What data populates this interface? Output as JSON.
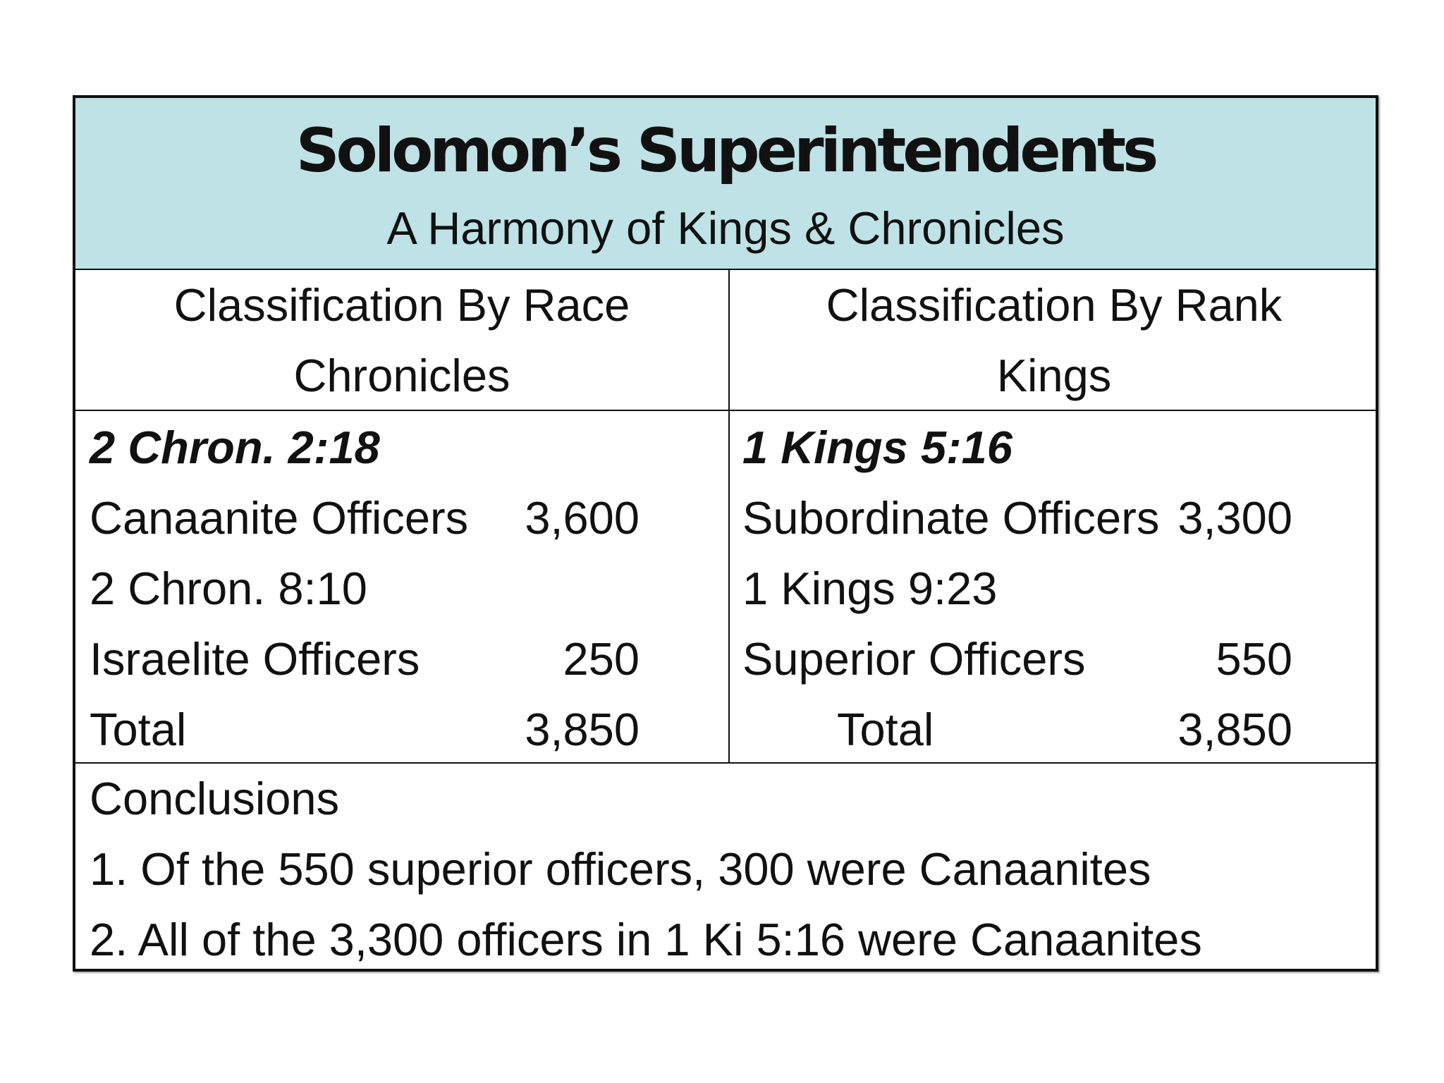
{
  "title": "Solomon’s Superintendents",
  "subtitle": "A Harmony of Kings & Chronicles",
  "left_header": {
    "line1": "Classification By Race",
    "line2": "Chronicles"
  },
  "right_header": {
    "line1": "Classification By Rank",
    "line2": "Kings"
  },
  "left_column": {
    "ref1": "2 Chron. 2:18",
    "row1_label": "Canaanite Officers",
    "row1_value": "3,600",
    "ref2": "2 Chron. 8:10",
    "row2_label": "Israelite Officers",
    "row2_value": "250",
    "total_label": "Total",
    "total_value": "3,850"
  },
  "right_column": {
    "ref1": "1 Kings 5:16",
    "row1_label": "Subordinate Officers",
    "row1_value": "3,300",
    "ref2": "1 Kings 9:23",
    "row2_label": "Superior Officers",
    "row2_value": "550",
    "total_label": "Total",
    "total_value": "3,850"
  },
  "conclusions": {
    "heading": "Conclusions",
    "items": [
      "1. Of the 550 superior officers, 300 were Canaanites",
      "2. All of the 3,300 officers in 1 Ki 5:16 were Canaanites"
    ]
  },
  "colors": {
    "title_band": "#bee2e5",
    "border": "#111111",
    "text": "#111111"
  }
}
